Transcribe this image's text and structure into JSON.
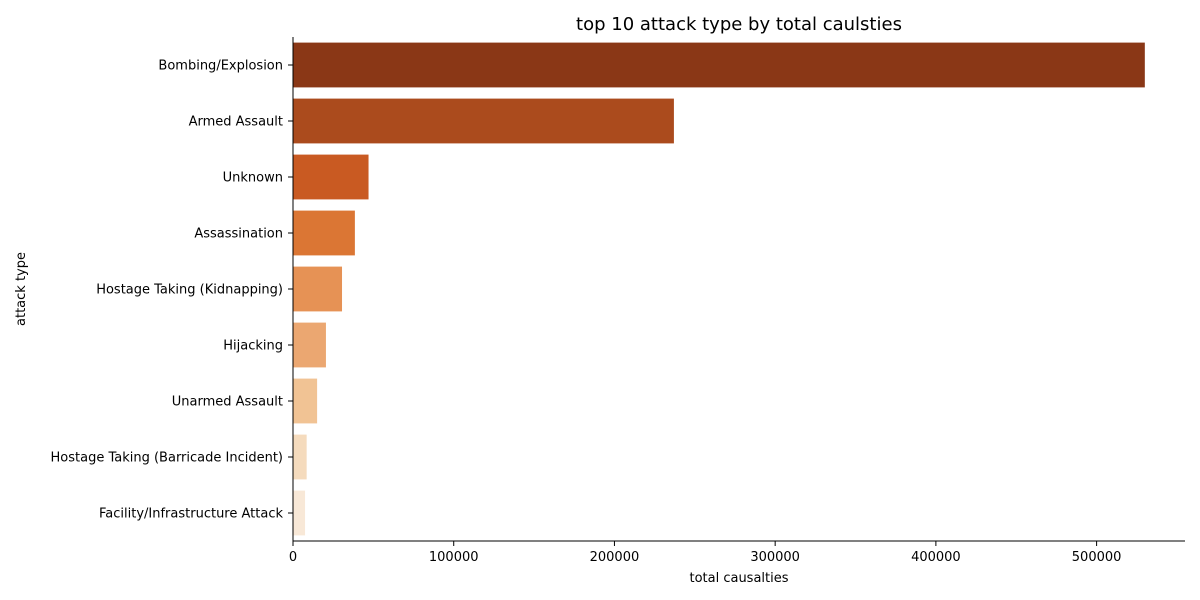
{
  "chart_data": {
    "type": "bar",
    "orientation": "horizontal",
    "title": "top 10 attack type by total caulsties",
    "xlabel": "total causalties",
    "ylabel": "attack type",
    "categories": [
      "Bombing/Explosion",
      "Armed Assault",
      "Unknown",
      "Assassination",
      "Hostage Taking (Kidnapping)",
      "Hijacking",
      "Unarmed Assault",
      "Hostage Taking (Barricade Incident)",
      "Facility/Infrastructure Attack"
    ],
    "values": [
      530000,
      237000,
      47000,
      38500,
      30500,
      20500,
      15000,
      8500,
      7500
    ],
    "colors": [
      "#8a3716",
      "#ab4b1d",
      "#c95a22",
      "#db7634",
      "#e69255",
      "#eba771",
      "#f1c394",
      "#f5dbbd",
      "#f8e8d7"
    ],
    "xlim": [
      0,
      555000
    ],
    "xticks": [
      0,
      100000,
      200000,
      300000,
      400000,
      500000
    ],
    "xtick_labels": [
      "0",
      "100000",
      "200000",
      "300000",
      "400000",
      "500000"
    ],
    "grid": false,
    "legend": "none"
  }
}
